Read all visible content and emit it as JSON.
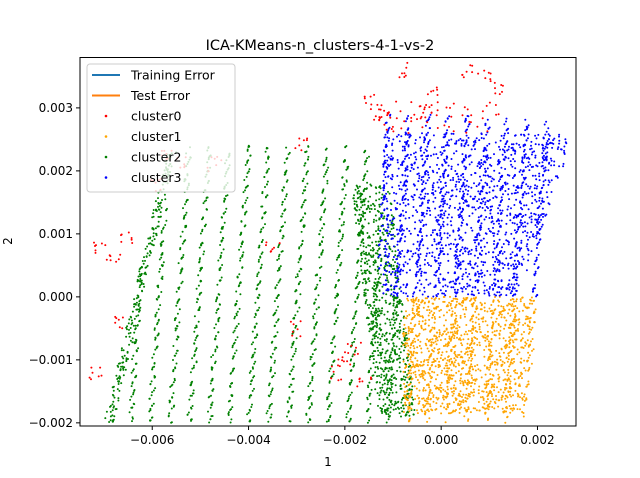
{
  "chart_data": {
    "type": "scatter",
    "title": "ICA-KMeans-n_clusters-4-1-vs-2",
    "xlabel": "1",
    "ylabel": "2",
    "xlim": [
      -0.0075,
      0.0028
    ],
    "ylim": [
      -0.00205,
      0.0038
    ],
    "xticks": [
      -0.006,
      -0.004,
      -0.002,
      0.0,
      0.002
    ],
    "xtick_labels": [
      "−0.006",
      "−0.004",
      "−0.002",
      "0.000",
      "0.002"
    ],
    "yticks": [
      -0.002,
      -0.001,
      0.0,
      0.001,
      0.002,
      0.003
    ],
    "ytick_labels": [
      "−0.002",
      "−0.001",
      "0.000",
      "0.001",
      "0.002",
      "0.003"
    ],
    "grid": false,
    "legend_position": "top-left",
    "legend": [
      {
        "label": "Training Error",
        "kind": "line",
        "color": "#1f77b4"
      },
      {
        "label": "Test Error",
        "kind": "line",
        "color": "#ff7f0e"
      },
      {
        "label": "cluster0",
        "kind": "marker",
        "color": "#ff0000"
      },
      {
        "label": "cluster1",
        "kind": "marker",
        "color": "#ffa500"
      },
      {
        "label": "cluster2",
        "kind": "marker",
        "color": "#008000"
      },
      {
        "label": "cluster3",
        "kind": "marker",
        "color": "#0000ff"
      }
    ],
    "series": [
      {
        "name": "cluster0",
        "color": "#ff0000",
        "region": {
          "x": [
            -0.0072,
            0.0016
          ],
          "y": [
            -0.0019,
            0.0036
          ]
        },
        "approx_points": 180
      },
      {
        "name": "cluster1",
        "color": "#ffa500",
        "region": {
          "x": [
            -0.001,
            0.002
          ],
          "y": [
            -0.00185,
            0.0
          ]
        },
        "approx_points": 2600
      },
      {
        "name": "cluster2",
        "color": "#008000",
        "region": {
          "x": [
            -0.0074,
            -0.0005
          ],
          "y": [
            -0.002,
            0.00235
          ]
        },
        "approx_points": 4200
      },
      {
        "name": "cluster3",
        "color": "#0000ff",
        "region": {
          "x": [
            -0.0015,
            0.0028
          ],
          "y": [
            0.0,
            0.003
          ]
        },
        "approx_points": 3200
      }
    ]
  }
}
